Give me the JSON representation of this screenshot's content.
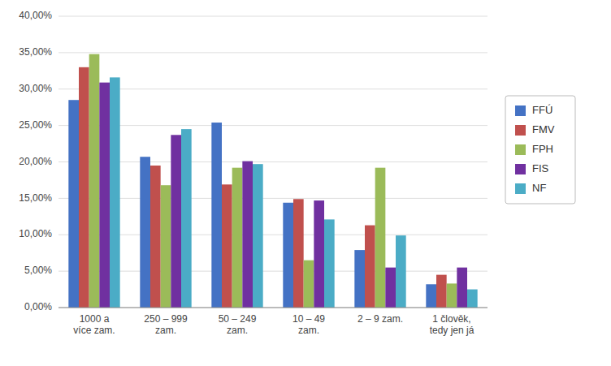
{
  "chart_data": {
    "type": "bar",
    "categories": [
      "1000 a\nví­ce zam.",
      "250 – 999\nzam.",
      "50 – 249\nzam.",
      "10 – 49\nzam.",
      "2 – 9 zam.",
      "1 člověk,\ntedy jen já"
    ],
    "series": [
      {
        "name": "FFÚ",
        "color": "#4472c4",
        "values": [
          0.285,
          0.207,
          0.254,
          0.144,
          0.079,
          0.032
        ]
      },
      {
        "name": "FMV",
        "color": "#c0504d",
        "values": [
          0.33,
          0.195,
          0.169,
          0.149,
          0.113,
          0.045
        ]
      },
      {
        "name": "FPH",
        "color": "#9bbb59",
        "values": [
          0.348,
          0.168,
          0.192,
          0.065,
          0.192,
          0.033
        ]
      },
      {
        "name": "FIS",
        "color": "#7030a0",
        "values": [
          0.309,
          0.237,
          0.201,
          0.147,
          0.055,
          0.055
        ]
      },
      {
        "name": "NF",
        "color": "#4bacc6",
        "values": [
          0.316,
          0.245,
          0.197,
          0.121,
          0.099,
          0.025
        ]
      }
    ],
    "ylim": [
      0.0,
      0.4
    ],
    "yticks": [
      {
        "value": 0.0,
        "label": "0,00%"
      },
      {
        "value": 0.05,
        "label": "5,00%"
      },
      {
        "value": 0.1,
        "label": "10,00%"
      },
      {
        "value": 0.15,
        "label": "15,00%"
      },
      {
        "value": 0.2,
        "label": "20,00%"
      },
      {
        "value": 0.25,
        "label": "25,00%"
      },
      {
        "value": 0.3,
        "label": "30,00%"
      },
      {
        "value": 0.35,
        "label": "35,00%"
      },
      {
        "value": 0.4,
        "label": "40,00%"
      }
    ],
    "grid": true,
    "legend": "right"
  }
}
